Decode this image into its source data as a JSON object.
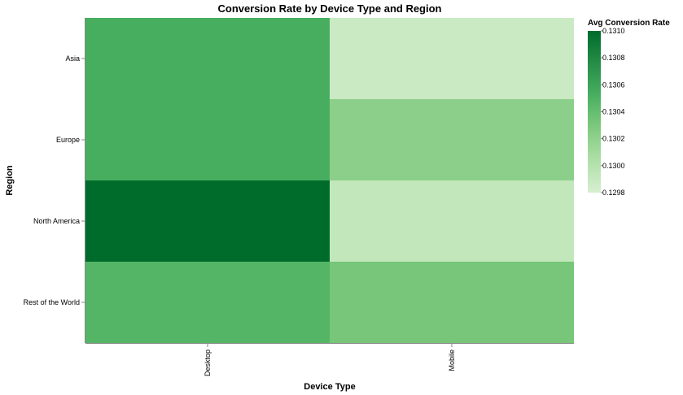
{
  "chart_data": {
    "type": "heatmap",
    "title": "Conversion Rate by Device Type and Region",
    "xlabel": "Device Type",
    "ylabel": "Region",
    "x_categories": [
      "Desktop",
      "Mobile"
    ],
    "y_categories": [
      "Asia",
      "Europe",
      "North America",
      "Rest of the World"
    ],
    "values": [
      {
        "region": "Asia",
        "device": "Desktop",
        "value": 0.13053
      },
      {
        "region": "Asia",
        "device": "Mobile",
        "value": 0.12988
      },
      {
        "region": "Europe",
        "device": "Desktop",
        "value": 0.13053
      },
      {
        "region": "Europe",
        "device": "Mobile",
        "value": 0.13022
      },
      {
        "region": "North America",
        "device": "Desktop",
        "value": 0.131
      },
      {
        "region": "North America",
        "device": "Mobile",
        "value": 0.12993
      },
      {
        "region": "Rest of the World",
        "device": "Desktop",
        "value": 0.13047
      },
      {
        "region": "Rest of the World",
        "device": "Mobile",
        "value": 0.13032
      }
    ],
    "legend": {
      "title": "Avg Conversion Rate",
      "position": "right",
      "min": 0.1298,
      "max": 0.131,
      "ticks": [
        "0.1310",
        "0.1308",
        "0.1306",
        "0.1304",
        "0.1302",
        "0.1300",
        "0.1298"
      ]
    },
    "color_scale": [
      "#e9f6e5",
      "#c7e9c0",
      "#a1d99b",
      "#74c476",
      "#41ab5d",
      "#238b45",
      "#006d2c",
      "#00441b"
    ]
  }
}
